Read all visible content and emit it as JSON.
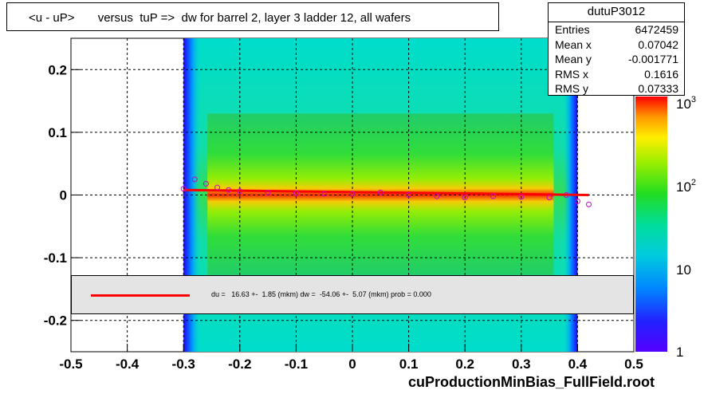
{
  "title": "<u - uP>       versus  tuP =>  dw for barrel 2, layer 3 ladder 12, all wafers",
  "stats": {
    "name": "dutuP3012",
    "rows": [
      {
        "label": "Entries",
        "value": "6472459"
      },
      {
        "label": "Mean x",
        "value": "0.07042"
      },
      {
        "label": "Mean y",
        "value": "-0.001771"
      },
      {
        "label": "RMS x",
        "value": "0.1616"
      },
      {
        "label": "RMS y",
        "value": "0.07333"
      }
    ]
  },
  "fit_legend": "du =   16.63 +-  1.85 (mkm) dw =  -54.06 +-  5.07 (mkm) prob = 0.000",
  "footer": "cuProductionMinBias_FullField.root",
  "colors": {
    "fit_line": "#ff0000",
    "profile_markers": "#cc00cc",
    "legend_bg": "#e4e4e4"
  },
  "chart_data": {
    "type": "heatmap",
    "title": "<u - uP>       versus  tuP =>  dw for barrel 2, layer 3 ladder 12, all wafers",
    "xlabel": "",
    "ylabel": "",
    "xlim": [
      -0.5,
      0.5
    ],
    "ylim": [
      -0.25,
      0.25
    ],
    "x_ticks": [
      "-0.5",
      "-0.4",
      "-0.3",
      "-0.2",
      "-0.1",
      "0",
      "0.1",
      "0.2",
      "0.3",
      "0.4",
      "0.5"
    ],
    "y_ticks": [
      "-0.2",
      "-0.1",
      "0",
      "0.1",
      "0.2"
    ],
    "x_tick_values": [
      -0.5,
      -0.4,
      -0.3,
      -0.2,
      -0.1,
      0,
      0.1,
      0.2,
      0.3,
      0.4,
      0.5
    ],
    "y_tick_values": [
      -0.2,
      -0.1,
      0,
      0.1,
      0.2
    ],
    "grid": true,
    "colorbar": {
      "scale": "log",
      "labels": [
        "1",
        "10",
        "10^2",
        "10^3"
      ]
    },
    "occupied_x_range": [
      -0.3,
      0.4
    ],
    "fit_line": {
      "x": [
        -0.3,
        0.42
      ],
      "y": [
        0.008,
        0.0
      ]
    },
    "profile": {
      "x": [
        -0.3,
        -0.28,
        -0.26,
        -0.24,
        -0.22,
        -0.2,
        -0.15,
        -0.1,
        -0.05,
        0.0,
        0.05,
        0.1,
        0.15,
        0.2,
        0.25,
        0.3,
        0.35,
        0.38,
        0.4,
        0.42
      ],
      "y": [
        0.01,
        0.025,
        0.018,
        0.012,
        0.008,
        0.006,
        0.004,
        0.003,
        0.002,
        0.002,
        0.004,
        0.0,
        -0.002,
        -0.004,
        -0.002,
        -0.003,
        -0.004,
        0.0,
        -0.01,
        -0.015
      ]
    }
  }
}
